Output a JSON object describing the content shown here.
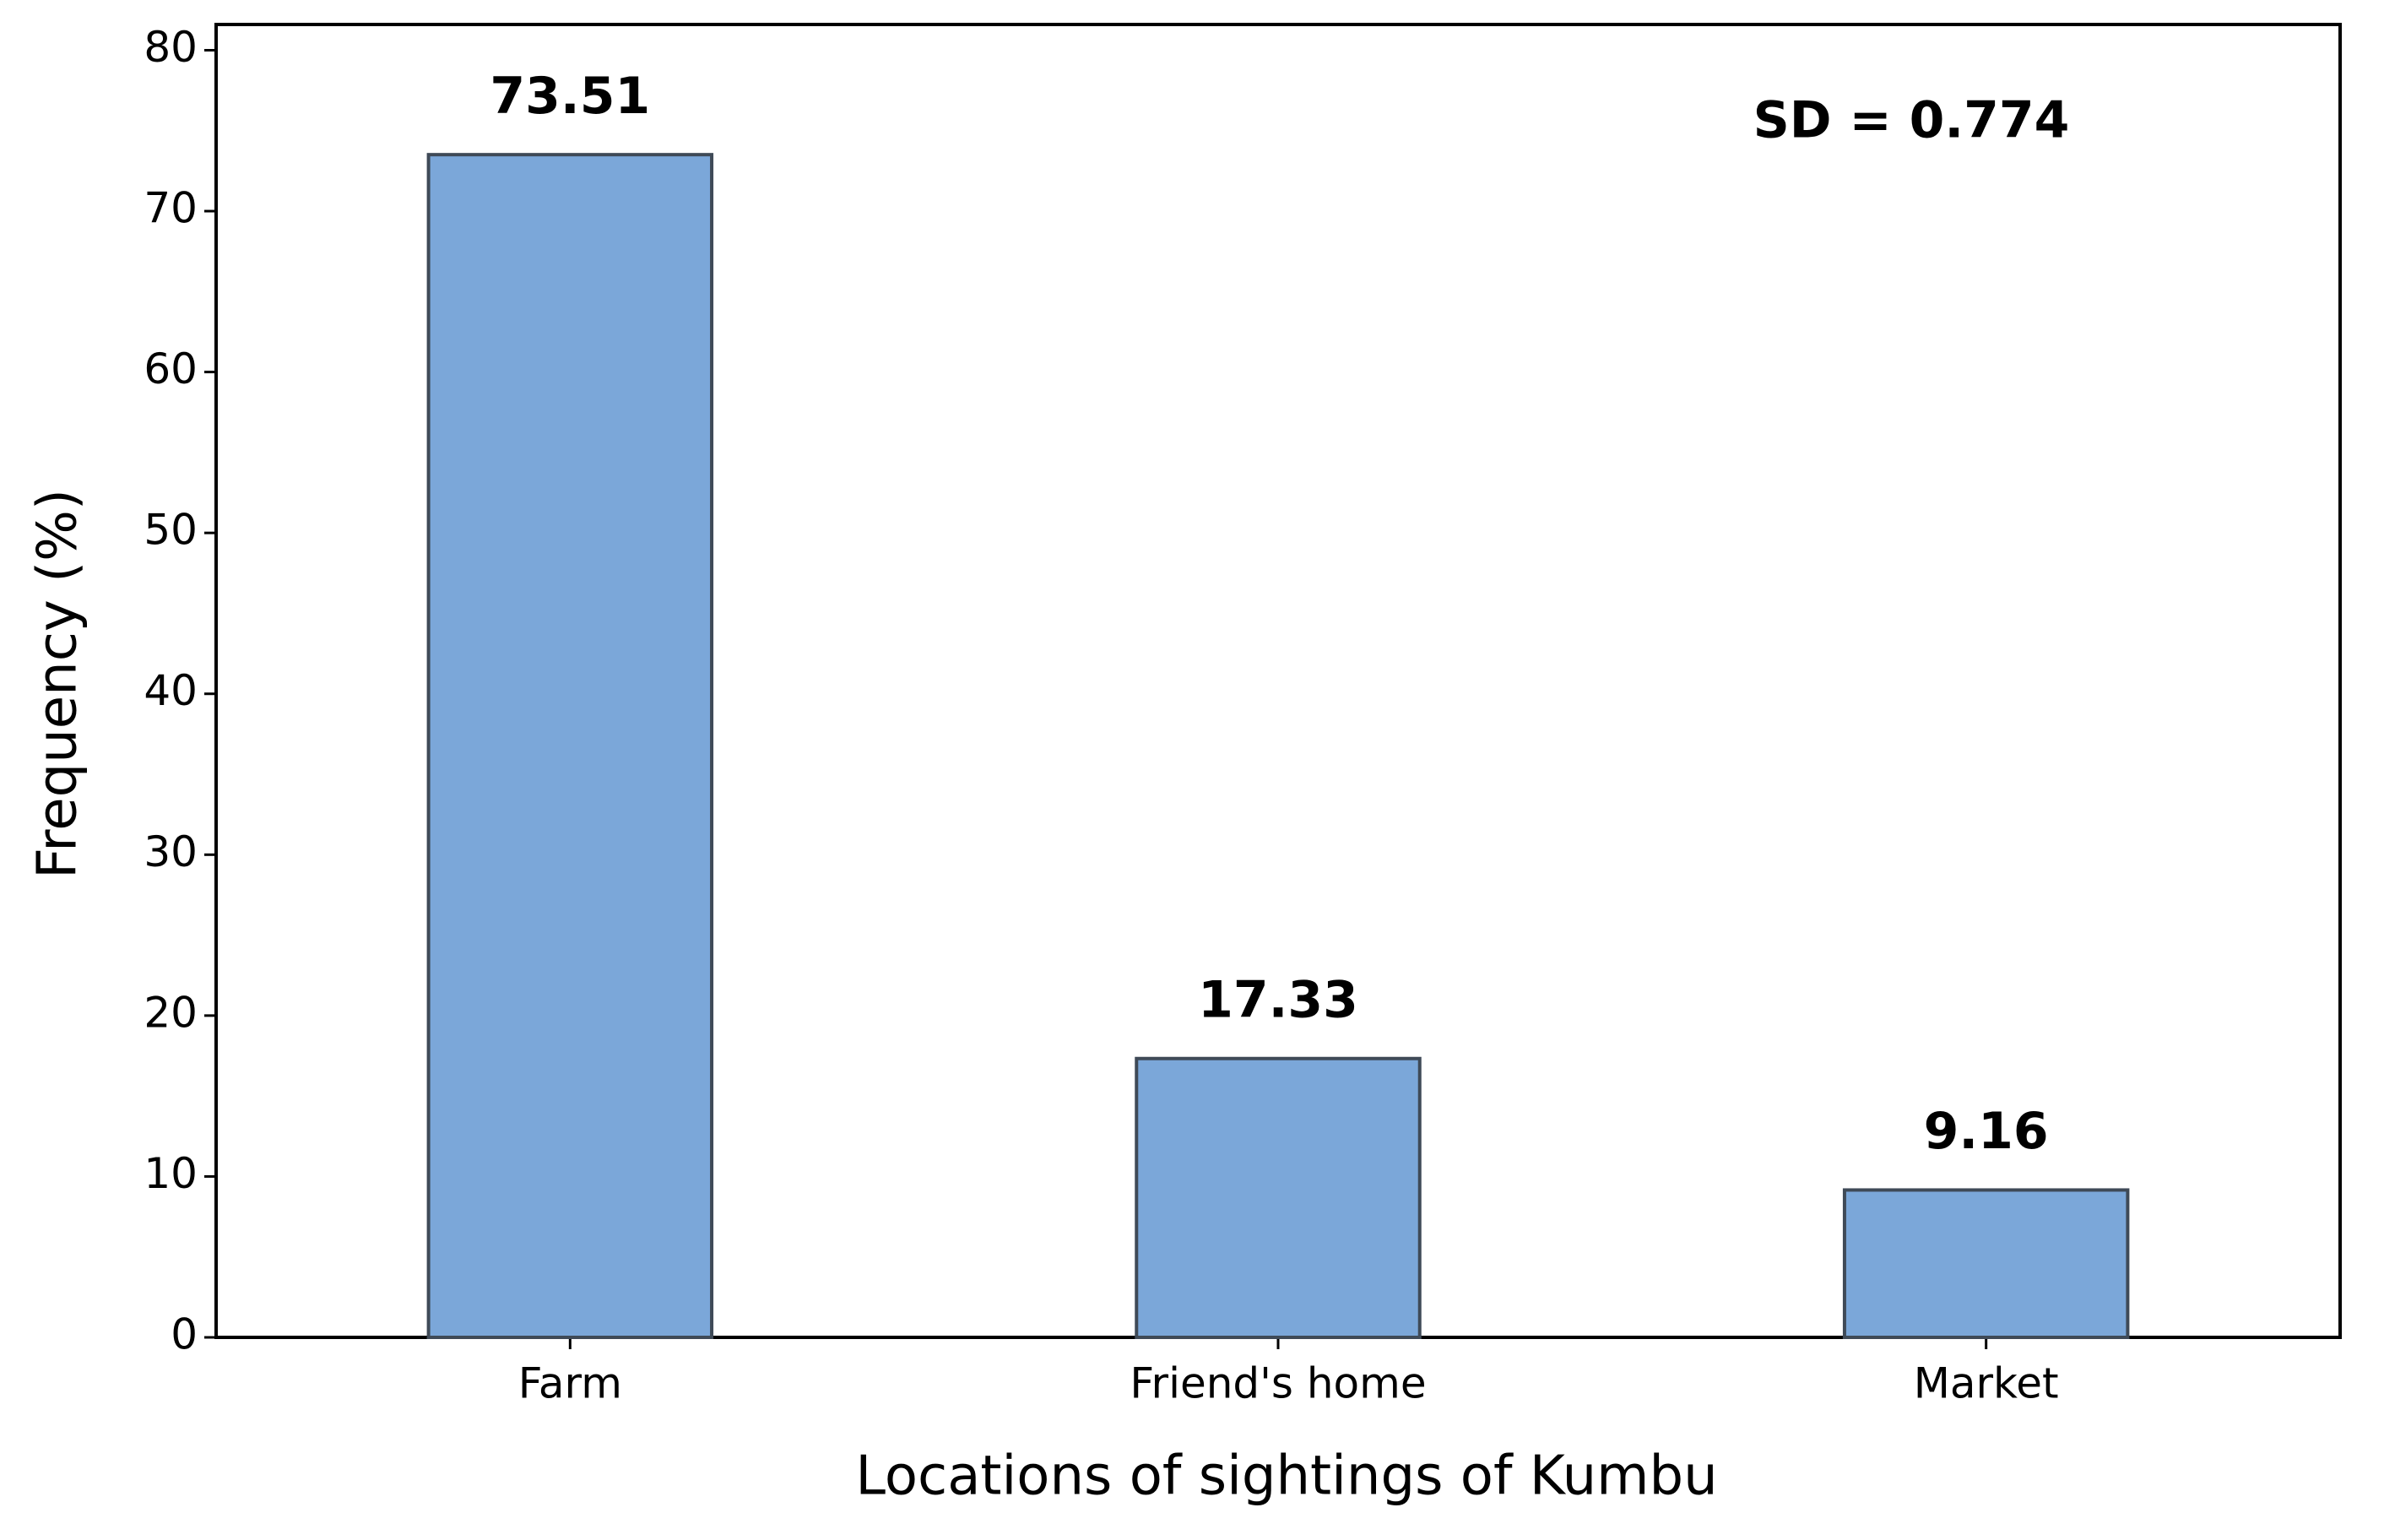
{
  "chart_data": {
    "type": "bar",
    "x_label": "Locations of sightings of Kumbu",
    "y_label": "Frequency (%)",
    "annotation": "SD = 0.774",
    "categories": [
      "Farm",
      "Friend's home",
      "Market"
    ],
    "values": [
      73.51,
      17.33,
      9.16
    ],
    "color": "#7ba7d9",
    "ylim": [
      0,
      81.6
    ],
    "yticks": [
      0,
      10,
      20,
      30,
      40,
      50,
      60,
      70,
      80
    ]
  }
}
